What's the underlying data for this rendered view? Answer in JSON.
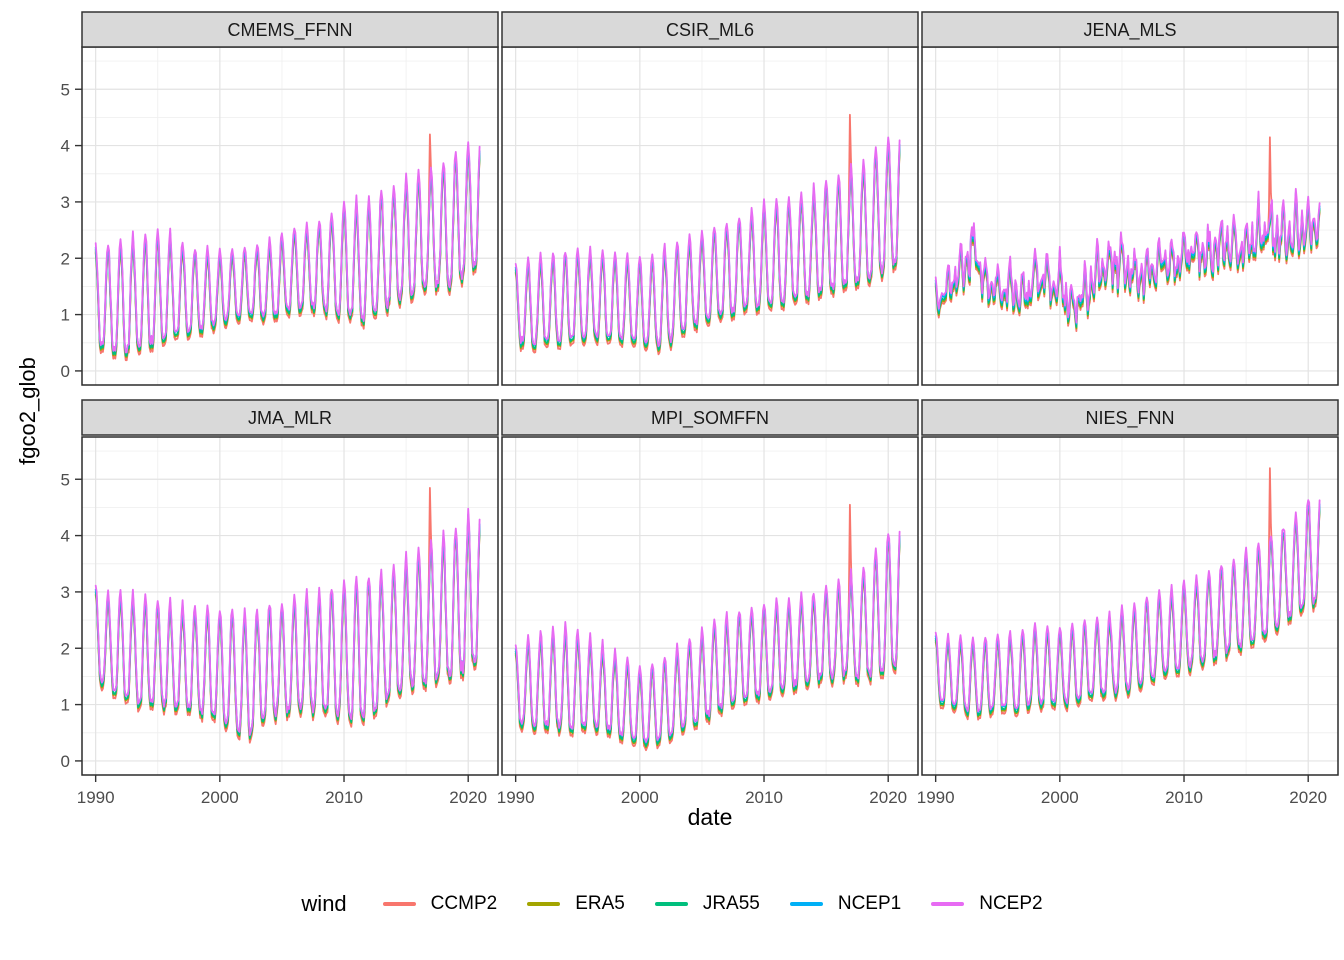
{
  "figure": {
    "x_axis_title": "date",
    "y_axis_title": "fgco2_glob",
    "x_ticks": [
      "1990",
      "2000",
      "2010",
      "2020"
    ],
    "y_ticks": [
      "0",
      "1",
      "2",
      "3",
      "4",
      "5"
    ]
  },
  "legend": {
    "title": "wind",
    "items": [
      {
        "label": "CCMP2",
        "color": "#F8766D"
      },
      {
        "label": "ERA5",
        "color": "#A3A500"
      },
      {
        "label": "JRA55",
        "color": "#00BF7D"
      },
      {
        "label": "NCEP1",
        "color": "#00B0F6"
      },
      {
        "label": "NCEP2",
        "color": "#E76BF3"
      }
    ]
  },
  "chart_data": {
    "type": "line",
    "title": "",
    "xlabel": "date",
    "ylabel": "fgco2_glob",
    "x_range": [
      1990,
      2021
    ],
    "ylim": [
      0,
      5
    ],
    "x_ticks": [
      1990,
      2000,
      2010,
      2020
    ],
    "y_ticks": [
      0,
      1,
      2,
      3,
      4,
      5
    ],
    "grid": true,
    "legend_position": "bottom",
    "legend_title": "wind",
    "series": [
      {
        "name": "CCMP2",
        "color": "#F8766D",
        "amp_scale": 1.02,
        "offset": -0.09
      },
      {
        "name": "ERA5",
        "color": "#A3A500",
        "amp_scale": 1.0,
        "offset": -0.05
      },
      {
        "name": "JRA55",
        "color": "#00BF7D",
        "amp_scale": 1.01,
        "offset": -0.02
      },
      {
        "name": "NCEP1",
        "color": "#00B0F6",
        "amp_scale": 1.0,
        "offset": 0.03
      },
      {
        "name": "NCEP2",
        "color": "#E76BF3",
        "amp_scale": 1.04,
        "offset": 0.07
      }
    ],
    "sampling": "monthly",
    "facets": [
      {
        "name": "CMEMS_FFNN",
        "seasonal": {
          "a1": 0.8,
          "a2": 0.2,
          "neg_boost": 1.65
        },
        "noise": 0.1,
        "envelope": [
          [
            1990,
            0.4,
            2.1
          ],
          [
            1992,
            0.3,
            2.25
          ],
          [
            1994,
            0.45,
            2.4
          ],
          [
            1996,
            0.55,
            2.35
          ],
          [
            1998,
            0.7,
            2.1
          ],
          [
            2000,
            0.85,
            2.05
          ],
          [
            2002,
            1.0,
            2.1
          ],
          [
            2004,
            0.95,
            2.25
          ],
          [
            2006,
            1.1,
            2.45
          ],
          [
            2008,
            1.1,
            2.6
          ],
          [
            2010,
            1.0,
            2.9
          ],
          [
            2012,
            0.9,
            2.95
          ],
          [
            2014,
            1.25,
            3.2
          ],
          [
            2016,
            1.4,
            3.45
          ],
          [
            2018,
            1.5,
            3.6
          ],
          [
            2021,
            1.85,
            4.1
          ]
        ],
        "ccmp2_spike": {
          "year": 2016.92,
          "value": 4.2
        }
      },
      {
        "name": "CSIR_ML6",
        "seasonal": {
          "a1": 0.8,
          "a2": 0.2,
          "neg_boost": 1.65
        },
        "noise": 0.1,
        "envelope": [
          [
            1990,
            0.5,
            1.8
          ],
          [
            1992,
            0.45,
            1.95
          ],
          [
            1994,
            0.5,
            2.05
          ],
          [
            1996,
            0.55,
            2.1
          ],
          [
            1998,
            0.6,
            2.0
          ],
          [
            2000,
            0.5,
            1.9
          ],
          [
            2002,
            0.45,
            2.1
          ],
          [
            2004,
            0.8,
            2.3
          ],
          [
            2006,
            0.95,
            2.5
          ],
          [
            2008,
            1.05,
            2.65
          ],
          [
            2010,
            1.15,
            2.9
          ],
          [
            2012,
            1.25,
            2.95
          ],
          [
            2014,
            1.35,
            3.15
          ],
          [
            2016,
            1.45,
            3.4
          ],
          [
            2018,
            1.55,
            3.6
          ],
          [
            2021,
            1.95,
            4.3
          ]
        ],
        "ccmp2_spike": {
          "year": 2016.92,
          "value": 4.55
        }
      },
      {
        "name": "JENA_MLS",
        "seasonal": {
          "a1": 0.35,
          "a2": 0.45,
          "neg_boost": 1.0
        },
        "noise": 0.45,
        "envelope": [
          [
            1990,
            0.9,
            1.55
          ],
          [
            1991,
            1.05,
            1.9
          ],
          [
            1992,
            1.3,
            2.3
          ],
          [
            1993,
            1.5,
            2.75
          ],
          [
            1994,
            1.05,
            2.0
          ],
          [
            1995,
            1.0,
            1.75
          ],
          [
            1996,
            1.0,
            1.85
          ],
          [
            1997,
            0.95,
            1.65
          ],
          [
            1998,
            1.1,
            2.2
          ],
          [
            1999,
            1.05,
            2.1
          ],
          [
            2000,
            1.0,
            2.1
          ],
          [
            2001,
            0.65,
            1.55
          ],
          [
            2002,
            0.75,
            1.95
          ],
          [
            2003,
            1.3,
            2.2
          ],
          [
            2004,
            1.4,
            2.4
          ],
          [
            2005,
            1.3,
            2.5
          ],
          [
            2006,
            1.3,
            2.15
          ],
          [
            2007,
            1.25,
            2.2
          ],
          [
            2008,
            1.4,
            2.4
          ],
          [
            2009,
            1.45,
            2.35
          ],
          [
            2010,
            1.5,
            2.5
          ],
          [
            2011,
            1.6,
            2.55
          ],
          [
            2012,
            1.5,
            2.6
          ],
          [
            2013,
            1.6,
            2.9
          ],
          [
            2014,
            1.7,
            2.7
          ],
          [
            2015,
            1.65,
            2.85
          ],
          [
            2016,
            1.7,
            3.0
          ],
          [
            2017,
            1.8,
            3.1
          ],
          [
            2018,
            1.9,
            2.95
          ],
          [
            2019,
            1.9,
            3.0
          ],
          [
            2021,
            2.2,
            3.1
          ]
        ],
        "ccmp2_spike": {
          "year": 2016.92,
          "value": 4.15
        }
      },
      {
        "name": "JMA_MLR",
        "seasonal": {
          "a1": 0.8,
          "a2": 0.2,
          "neg_boost": 1.65
        },
        "noise": 0.1,
        "envelope": [
          [
            1990,
            1.45,
            3.0
          ],
          [
            1992,
            1.15,
            2.9
          ],
          [
            1994,
            1.0,
            2.8
          ],
          [
            1996,
            0.95,
            2.75
          ],
          [
            1998,
            0.9,
            2.65
          ],
          [
            2000,
            0.75,
            2.6
          ],
          [
            2002,
            0.45,
            2.6
          ],
          [
            2004,
            0.8,
            2.7
          ],
          [
            2006,
            0.9,
            2.8
          ],
          [
            2008,
            0.9,
            2.9
          ],
          [
            2010,
            0.8,
            3.1
          ],
          [
            2012,
            0.75,
            3.2
          ],
          [
            2014,
            1.2,
            3.4
          ],
          [
            2016,
            1.4,
            3.65
          ],
          [
            2018,
            1.45,
            3.9
          ],
          [
            2021,
            1.75,
            4.4
          ]
        ],
        "ccmp2_spike": {
          "year": 2016.92,
          "value": 4.85
        }
      },
      {
        "name": "MPI_SOMFFN",
        "seasonal": {
          "a1": 0.8,
          "a2": 0.2,
          "neg_boost": 1.65
        },
        "noise": 0.1,
        "envelope": [
          [
            1990,
            0.65,
            2.0
          ],
          [
            1992,
            0.6,
            2.2
          ],
          [
            1994,
            0.55,
            2.3
          ],
          [
            1996,
            0.6,
            2.1
          ],
          [
            1998,
            0.5,
            1.85
          ],
          [
            2000,
            0.3,
            1.6
          ],
          [
            2002,
            0.35,
            1.75
          ],
          [
            2004,
            0.65,
            2.1
          ],
          [
            2006,
            0.85,
            2.4
          ],
          [
            2008,
            1.05,
            2.6
          ],
          [
            2010,
            1.2,
            2.7
          ],
          [
            2012,
            1.3,
            2.8
          ],
          [
            2014,
            1.4,
            2.9
          ],
          [
            2016,
            1.5,
            3.1
          ],
          [
            2018,
            1.5,
            3.35
          ],
          [
            2021,
            1.65,
            4.25
          ]
        ],
        "ccmp2_spike": {
          "year": 2016.92,
          "value": 4.55
        }
      },
      {
        "name": "NIES_FNN",
        "seasonal": {
          "a1": 0.8,
          "a2": 0.2,
          "neg_boost": 1.65
        },
        "noise": 0.1,
        "envelope": [
          [
            1990,
            1.1,
            2.2
          ],
          [
            1992,
            0.9,
            2.1
          ],
          [
            1994,
            0.85,
            2.1
          ],
          [
            1996,
            0.9,
            2.2
          ],
          [
            1998,
            1.0,
            2.3
          ],
          [
            2000,
            1.0,
            2.3
          ],
          [
            2002,
            1.1,
            2.4
          ],
          [
            2004,
            1.2,
            2.5
          ],
          [
            2006,
            1.3,
            2.7
          ],
          [
            2008,
            1.5,
            2.9
          ],
          [
            2010,
            1.65,
            3.1
          ],
          [
            2012,
            1.8,
            3.3
          ],
          [
            2014,
            2.0,
            3.5
          ],
          [
            2016,
            2.15,
            3.8
          ],
          [
            2018,
            2.5,
            4.1
          ],
          [
            2021,
            2.85,
            4.8
          ]
        ],
        "ccmp2_spike": {
          "year": 2016.92,
          "value": 5.2
        }
      }
    ]
  },
  "style": {
    "strip_fill": "#D9D9D9",
    "strip_border": "#333333",
    "panel_border": "#2b2b2b",
    "grid_major": "#E3E3E3",
    "grid_minor": "#F0F0F0",
    "tick_color": "#333333",
    "tick_label_color": "#4d4d4d"
  }
}
